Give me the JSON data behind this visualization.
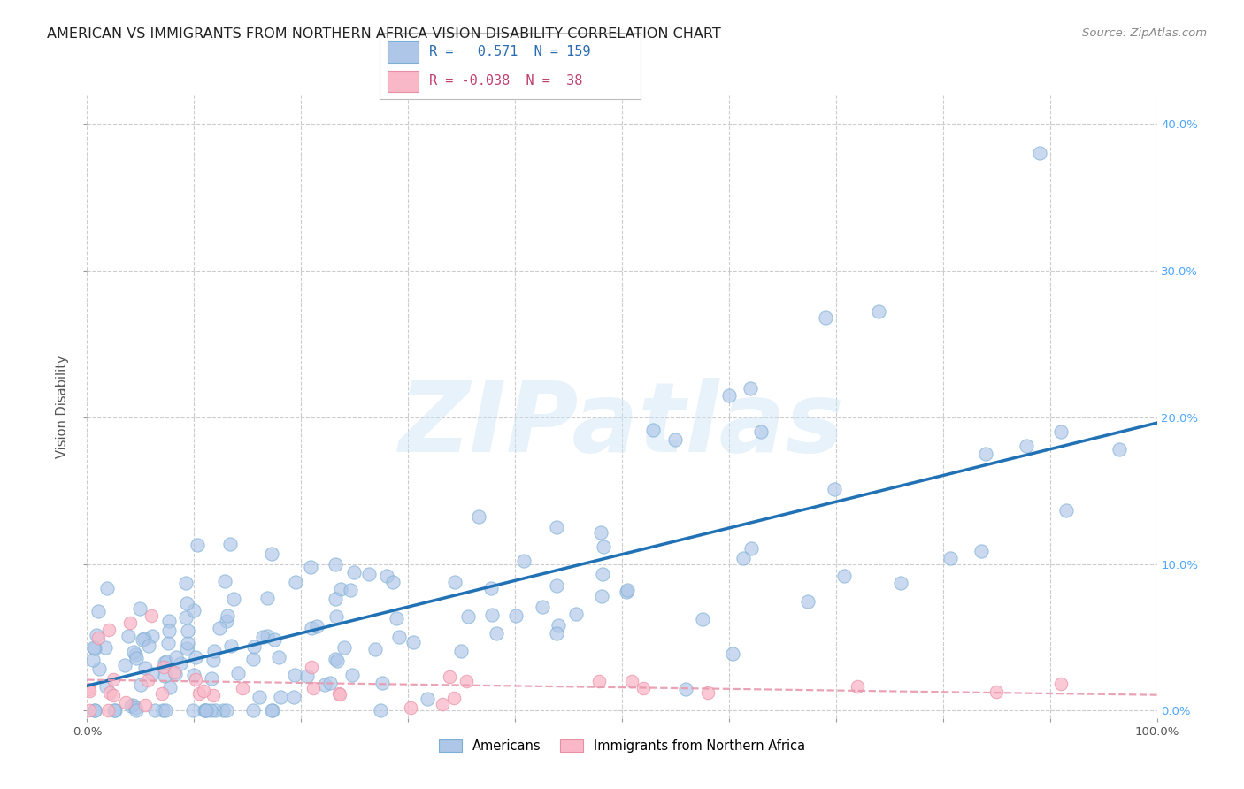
{
  "title": "AMERICAN VS IMMIGRANTS FROM NORTHERN AFRICA VISION DISABILITY CORRELATION CHART",
  "source": "Source: ZipAtlas.com",
  "ylabel": "Vision Disability",
  "watermark": "ZIPatlas",
  "legend_r1": "R =   0.571  N = 159",
  "legend_r2": "R = -0.038  N =  38",
  "americans_R": 0.571,
  "americans_N": 159,
  "immigrants_R": -0.038,
  "immigrants_N": 38,
  "xlim": [
    0.0,
    1.0
  ],
  "ylim": [
    -0.005,
    0.42
  ],
  "xticks": [
    0.0,
    0.1,
    0.2,
    0.3,
    0.4,
    0.5,
    0.6,
    0.7,
    0.8,
    0.9,
    1.0
  ],
  "yticks": [
    0.0,
    0.1,
    0.2,
    0.3,
    0.4
  ],
  "tick_labels_y": [
    "0.0%",
    "10.0%",
    "20.0%",
    "30.0%",
    "40.0%"
  ],
  "scatter_color_americans": "#aec6e8",
  "scatter_edge_americans": "#7bafd4",
  "scatter_color_immigrants": "#f9b8c8",
  "scatter_edge_immigrants": "#e88fa5",
  "line_color_americans": "#2171b5",
  "line_color_immigrants": "#e899ad",
  "background_color": "#ffffff",
  "grid_color": "#cccccc",
  "title_color": "#222222",
  "axis_label_color": "#555555",
  "tick_color_right": "#4da6ff",
  "legend_text_blue": "#2b6cb0",
  "legend_text_pink": "#c04070"
}
